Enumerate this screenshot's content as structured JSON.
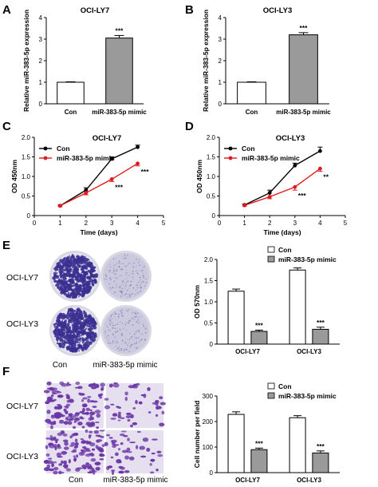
{
  "panels": {
    "A": "A",
    "B": "B",
    "C": "C",
    "D": "D",
    "E": "E",
    "F": "F"
  },
  "photos": {
    "E": {
      "rows": [
        "OCI-LY7",
        "OCI-LY3"
      ],
      "cols": [
        "Con",
        "miR-383-5p mimic"
      ],
      "colors": {
        "colony": "#3b2f91",
        "background_con": "#e7e6f2",
        "background_mimic": "#cbc9dd"
      }
    },
    "F": {
      "rows": [
        "OCI-LY7",
        "OCI-LY3"
      ],
      "cols": [
        "Con",
        "miR-383-5p mimic"
      ],
      "colors": {
        "cell": "#6a35a5",
        "background": "#e6dff0"
      }
    }
  },
  "colors": {
    "con_line": "#000000",
    "mimic_line": "#e0191c",
    "bar_con": "#ffffff",
    "bar_mimic": "#9a9a9a"
  },
  "chart_data": [
    {
      "panel": "A",
      "type": "bar",
      "title": "OCI-LY7",
      "categories": [
        "Con",
        "miR-383-5p mimic"
      ],
      "values": [
        1.0,
        3.05
      ],
      "errors": [
        0.02,
        0.12
      ],
      "ylabel": "Relative miR-383-5p expression",
      "xlabel": "",
      "ylim": [
        0,
        4
      ],
      "yticks": [
        0,
        1,
        2,
        3,
        4
      ],
      "annotations": [
        {
          "category": "miR-383-5p mimic",
          "text": "***"
        }
      ]
    },
    {
      "panel": "B",
      "type": "bar",
      "title": "OCI-LY3",
      "categories": [
        "Con",
        "miR-383-5p mimic"
      ],
      "values": [
        1.0,
        3.2
      ],
      "errors": [
        0.02,
        0.1
      ],
      "ylabel": "Relative miR-383-5p expression",
      "xlabel": "",
      "ylim": [
        0,
        4
      ],
      "yticks": [
        0,
        1,
        2,
        3,
        4
      ],
      "annotations": [
        {
          "category": "miR-383-5p mimic",
          "text": "***"
        }
      ]
    },
    {
      "panel": "C",
      "type": "line",
      "title": "OCI-LY7",
      "x": [
        1,
        2,
        3,
        4
      ],
      "series": [
        {
          "name": "Con",
          "values": [
            0.25,
            0.65,
            1.45,
            1.75
          ],
          "errors": [
            0.02,
            0.06,
            0.05,
            0.05
          ]
        },
        {
          "name": "miR-383-5p mimic",
          "values": [
            0.25,
            0.58,
            0.93,
            1.33
          ],
          "errors": [
            0.02,
            0.05,
            0.06,
            0.06
          ]
        }
      ],
      "xlabel": "Time (days)",
      "ylabel": "OD 450nm",
      "xlim": [
        0,
        5
      ],
      "ylim": [
        0,
        2.0
      ],
      "xticks": [
        0,
        1,
        2,
        3,
        4,
        5
      ],
      "yticks": [
        "0",
        "0.5",
        "1.0",
        "1.5",
        "2.0"
      ],
      "legend": "top-left",
      "annotations": [
        {
          "x": 3,
          "text": "***"
        },
        {
          "x": 4,
          "text": "***"
        }
      ]
    },
    {
      "panel": "D",
      "type": "line",
      "title": "OCI-LY3",
      "x": [
        1,
        2,
        3,
        4
      ],
      "series": [
        {
          "name": "Con",
          "values": [
            0.27,
            0.58,
            1.28,
            1.65
          ],
          "errors": [
            0.02,
            0.07,
            0.06,
            0.1
          ]
        },
        {
          "name": "miR-383-5p mimic",
          "values": [
            0.26,
            0.48,
            0.73,
            1.2
          ],
          "errors": [
            0.02,
            0.05,
            0.08,
            0.07
          ]
        }
      ],
      "xlabel": "Time (days)",
      "ylabel": "OD 450nm",
      "xlim": [
        0,
        5
      ],
      "ylim": [
        0,
        2.0
      ],
      "xticks": [
        0,
        1,
        2,
        3,
        4,
        5
      ],
      "yticks": [
        "0",
        "0.5",
        "1.0",
        "1.5",
        "2.0"
      ],
      "legend": "top-left",
      "annotations": [
        {
          "x": 3,
          "text": "***"
        },
        {
          "x": 4,
          "text": "**"
        }
      ]
    },
    {
      "panel": "E",
      "type": "bar",
      "categories": [
        "OCI-LY7",
        "OCI-LY3"
      ],
      "series": [
        {
          "name": "Con",
          "values": [
            1.25,
            1.75
          ],
          "errors": [
            0.05,
            0.05
          ]
        },
        {
          "name": "miR-383-5p mimic",
          "values": [
            0.3,
            0.35
          ],
          "errors": [
            0.03,
            0.05
          ]
        }
      ],
      "ylabel": "OD 570nm",
      "xlabel": "",
      "ylim": [
        0,
        2.0
      ],
      "yticks": [
        "0",
        "0.5",
        "1.0",
        "1.5",
        "2.0"
      ],
      "legend": "top-right",
      "annotations": [
        {
          "category": "OCI-LY7",
          "text": "***"
        },
        {
          "category": "OCI-LY3",
          "text": "***"
        }
      ]
    },
    {
      "panel": "F",
      "type": "bar",
      "categories": [
        "OCI-LY7",
        "OCI-LY3"
      ],
      "series": [
        {
          "name": "Con",
          "values": [
            228,
            215
          ],
          "errors": [
            10,
            8
          ]
        },
        {
          "name": "miR-383-5p mimic",
          "values": [
            90,
            77
          ],
          "errors": [
            6,
            8
          ]
        }
      ],
      "ylabel": "Cell number per field",
      "xlabel": "",
      "ylim": [
        0,
        300
      ],
      "yticks": [
        "0",
        "100",
        "200",
        "300"
      ],
      "legend": "top-right",
      "annotations": [
        {
          "category": "OCI-LY7",
          "text": "***"
        },
        {
          "category": "OCI-LY3",
          "text": "***"
        }
      ]
    }
  ]
}
